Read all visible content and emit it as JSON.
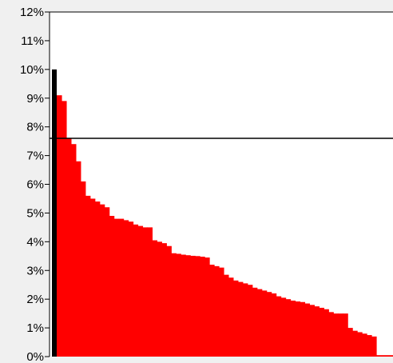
{
  "chart_data": {
    "type": "bar",
    "y_unit": "%",
    "ylim": [
      0,
      12
    ],
    "y_ticks": [
      "0%",
      "1%",
      "2%",
      "3%",
      "4%",
      "5%",
      "6%",
      "7%",
      "8%",
      "9%",
      "10%",
      "11%",
      "12%"
    ],
    "reference_line": 7.6,
    "highlight_bar": {
      "value": 10.0,
      "color": "#000000"
    },
    "series": [
      {
        "color": "#ff0000",
        "values": [
          9.1,
          8.9,
          7.6,
          7.4,
          6.8,
          6.1,
          5.6,
          5.5,
          5.4,
          5.3,
          5.2,
          4.9,
          4.8,
          4.8,
          4.75,
          4.7,
          4.6,
          4.55,
          4.5,
          4.5,
          4.05,
          4.0,
          3.95,
          3.85,
          3.6,
          3.58,
          3.55,
          3.53,
          3.51,
          3.5,
          3.48,
          3.45,
          3.2,
          3.15,
          3.1,
          2.85,
          2.75,
          2.65,
          2.6,
          2.55,
          2.5,
          2.4,
          2.35,
          2.3,
          2.25,
          2.2,
          2.1,
          2.05,
          2.0,
          1.95,
          1.92,
          1.9,
          1.85,
          1.8,
          1.75,
          1.7,
          1.65,
          1.55,
          1.5,
          1.5,
          1.5,
          1.0,
          0.9,
          0.85,
          0.8,
          0.75,
          0.7,
          0.05
        ]
      }
    ],
    "colors": {
      "background": "#f0f0f0",
      "plot": "#ffffff",
      "axis": "#000000"
    }
  }
}
